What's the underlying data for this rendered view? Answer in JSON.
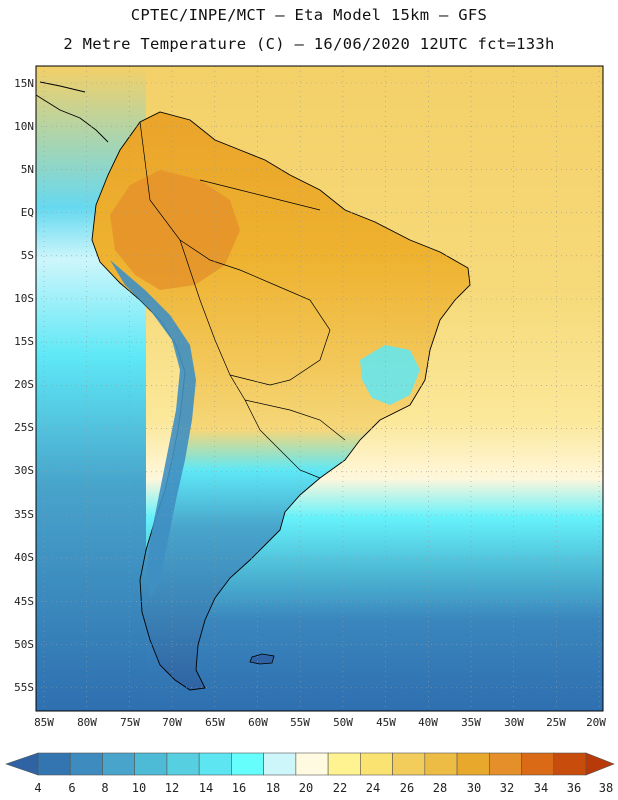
{
  "header": {
    "title_line1": "CPTEC/INPE/MCT –  Eta Model 15km – GFS",
    "title_line2": "2 Metre Temperature (C) – 16/06/2020 12UTC fct=133h"
  },
  "map": {
    "variable": "2 Metre Temperature",
    "units": "C",
    "lat_labels": [
      "15N",
      "10N",
      "5N",
      "EQ",
      "5S",
      "10S",
      "15S",
      "20S",
      "25S",
      "30S",
      "35S",
      "40S",
      "45S",
      "50S",
      "55S"
    ],
    "lon_labels": [
      "85W",
      "80W",
      "75W",
      "70W",
      "65W",
      "60W",
      "55W",
      "50W",
      "45W",
      "40W",
      "35W",
      "30W",
      "25W",
      "20W"
    ],
    "colors": {
      "ocean_north": "#f4d068",
      "land_warm": "#eeb22f",
      "land_hot": "#e48f2a",
      "land_mid": "#f3c95c",
      "andes_cold": "#3f8fc2",
      "coast_cool": "#5ee8f6",
      "ocean_south": "#2e6fb0",
      "border": "#000000"
    }
  },
  "colorbar": {
    "labels": [
      "4",
      "6",
      "8",
      "10",
      "12",
      "14",
      "16",
      "18",
      "20",
      "22",
      "24",
      "26",
      "28",
      "30",
      "32",
      "34",
      "36",
      "38"
    ],
    "colors": [
      "#2f63a3",
      "#3375b0",
      "#3d8bbf",
      "#48a4cb",
      "#4ebbd6",
      "#56cfe0",
      "#5de6f2",
      "#66fdfd",
      "#cdf6fb",
      "#fffae0",
      "#fff290",
      "#fbe372",
      "#f2cd5c",
      "#edbc45",
      "#e8a82c",
      "#e48f2a",
      "#da6a16",
      "#c84c0c",
      "#b83a08"
    ]
  }
}
